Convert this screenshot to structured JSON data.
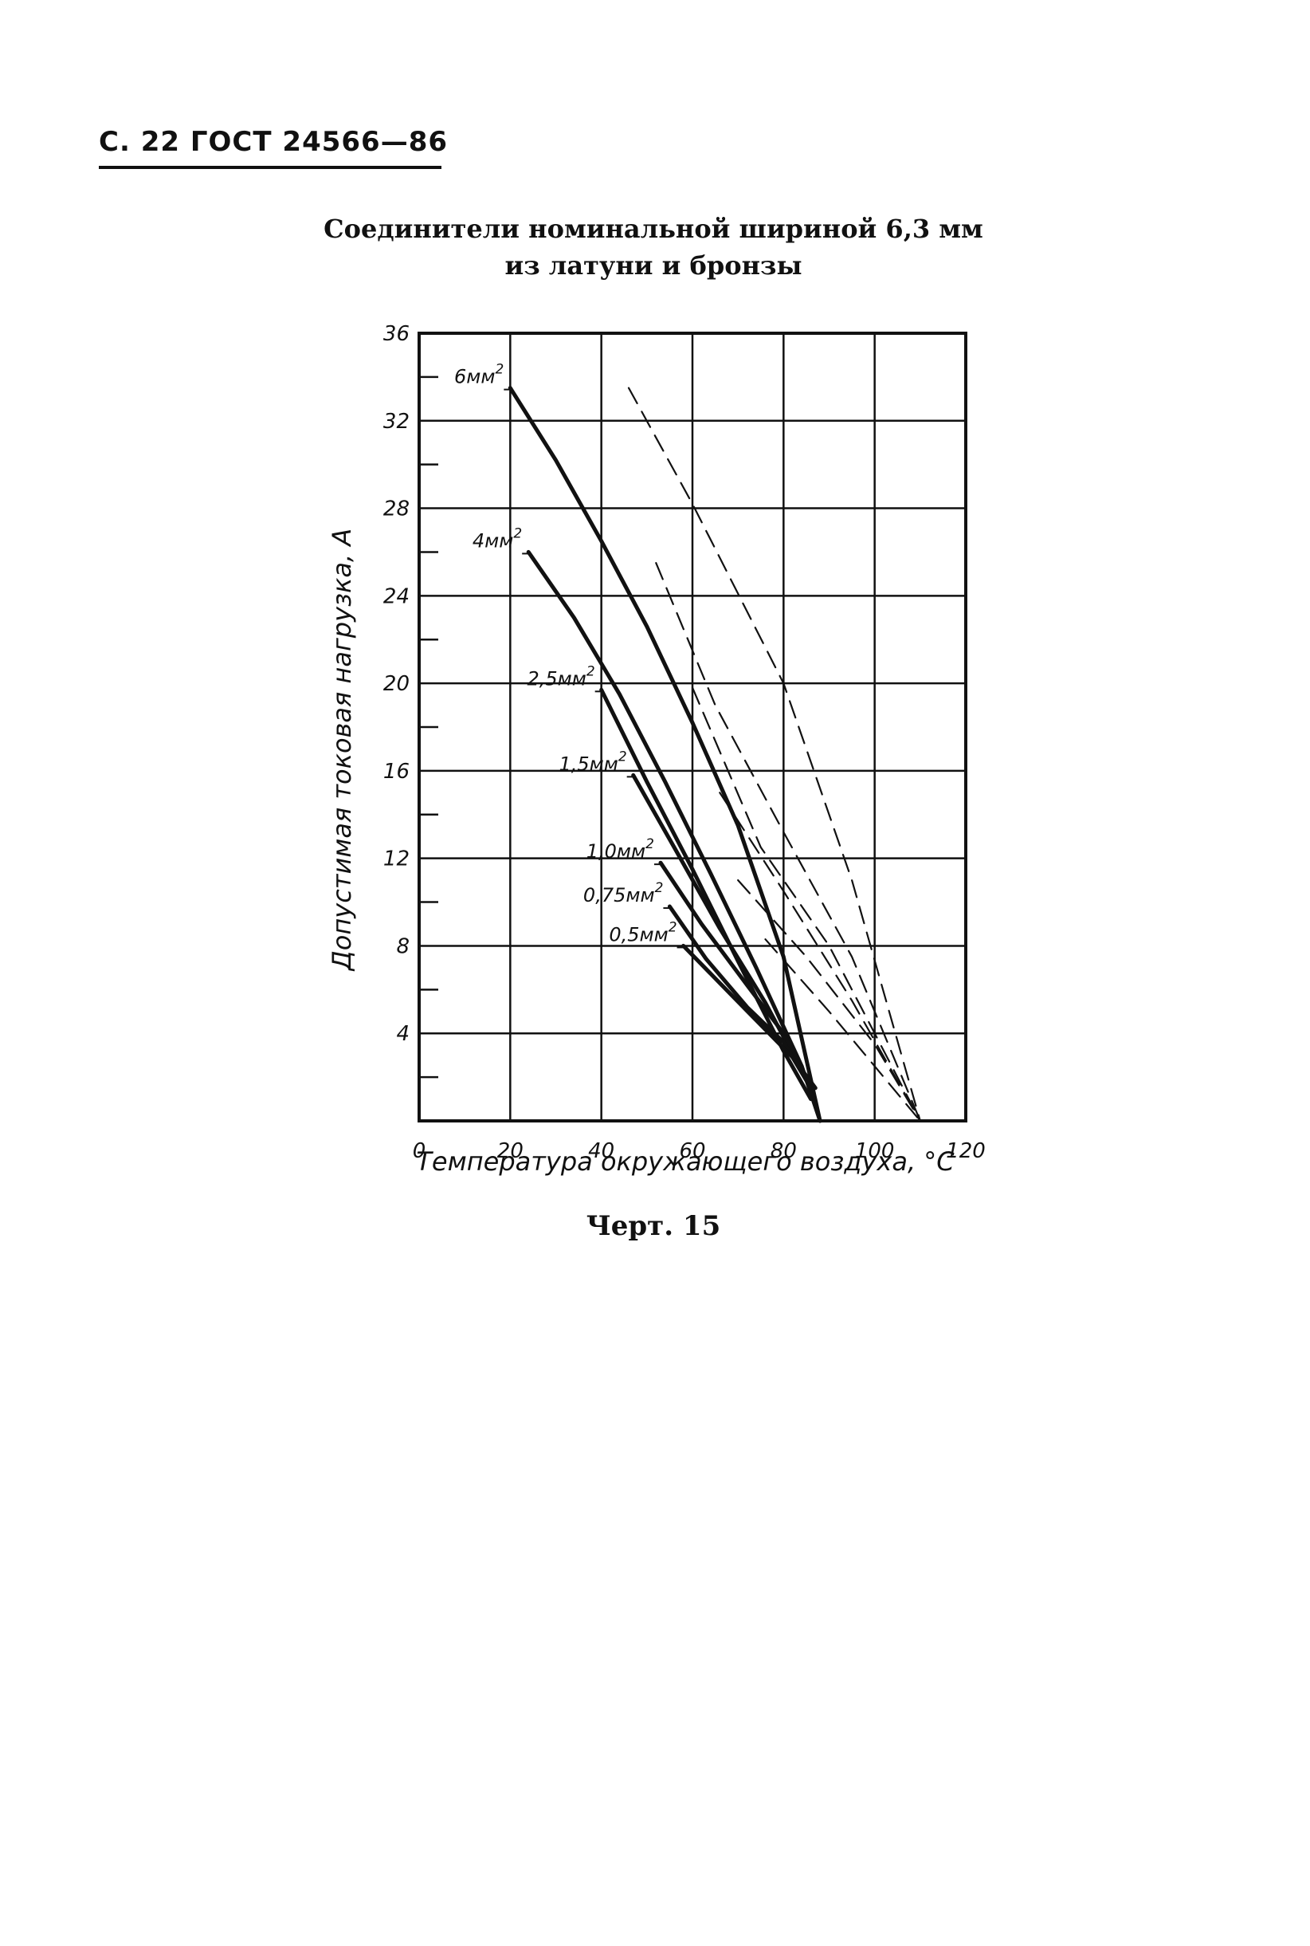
{
  "page": {
    "header": "С. 22 ГОСТ 24566—86",
    "title_lines": [
      "Соединители номинальной шириной 6,3 мм",
      "из латуни и бронзы"
    ],
    "caption": "Черт. 15"
  },
  "colors": {
    "ink": "#111111",
    "background": "#ffffff"
  },
  "chart_data": {
    "type": "line",
    "xlabel": "Температура окружающего воздуха, °С",
    "ylabel": "Допустимая токовая нагрузка, А",
    "xlim": [
      0,
      120
    ],
    "ylim": [
      0,
      36
    ],
    "xticks": [
      0,
      20,
      40,
      60,
      80,
      100,
      120
    ],
    "xtick_labels": [
      "0",
      "20",
      "40",
      "60",
      "80",
      "100",
      "120"
    ],
    "yticks": [
      4,
      8,
      12,
      16,
      20,
      24,
      28,
      32,
      36
    ],
    "ytick_labels": [
      "4",
      "8",
      "12",
      "16",
      "20",
      "24",
      "28",
      "32",
      "36"
    ],
    "grid": true,
    "series": [
      {
        "name": "6 мм²",
        "label": "6мм",
        "style": "solid",
        "x": [
          20,
          30,
          40,
          50,
          60,
          70,
          80,
          88
        ],
        "y": [
          33.5,
          30.2,
          26.5,
          22.6,
          18.2,
          13.5,
          7.5,
          0
        ]
      },
      {
        "name": "4 мм²",
        "label": "4мм",
        "style": "solid",
        "x": [
          24,
          34,
          44,
          54,
          64,
          74,
          84,
          88
        ],
        "y": [
          26,
          23,
          19.5,
          15.5,
          11.3,
          7,
          2.5,
          0
        ]
      },
      {
        "name": "2,5 мм²",
        "label": "2,5мм",
        "style": "solid",
        "x": [
          40,
          50,
          60,
          70,
          80,
          86
        ],
        "y": [
          19.7,
          15.5,
          11.5,
          7.3,
          3.2,
          1
        ]
      },
      {
        "name": "1,5 мм²",
        "label": "1,5мм",
        "style": "solid",
        "x": [
          47,
          56,
          66,
          76,
          86
        ],
        "y": [
          15.8,
          12.5,
          8.8,
          5.4,
          1.5
        ]
      },
      {
        "name": "1,0 мм²",
        "label": "1,0мм",
        "style": "solid",
        "x": [
          53,
          62,
          72,
          80,
          86
        ],
        "y": [
          11.8,
          9,
          6.2,
          4,
          1.5
        ]
      },
      {
        "name": "0,75 мм²",
        "label": "0,75мм",
        "style": "solid",
        "x": [
          55,
          63,
          72,
          80,
          86
        ],
        "y": [
          9.8,
          7.4,
          5.2,
          3.6,
          1.5
        ]
      },
      {
        "name": "0,5 мм²",
        "label": "0,5мм",
        "style": "solid",
        "x": [
          58,
          66,
          74,
          82,
          87
        ],
        "y": [
          8,
          6.3,
          4.6,
          2.9,
          1.5
        ]
      },
      {
        "name": "",
        "style": "dashed",
        "x": [
          46,
          60,
          80,
          95,
          110
        ],
        "y": [
          33.5,
          28.2,
          20,
          11,
          0
        ]
      },
      {
        "name": "",
        "style": "dashed",
        "x": [
          52,
          65,
          80,
          95,
          110
        ],
        "y": [
          25.5,
          19,
          13.2,
          7.5,
          0
        ]
      },
      {
        "name": "",
        "style": "dashed",
        "x": [
          60,
          75,
          90,
          110
        ],
        "y": [
          19.8,
          12.5,
          8,
          0
        ]
      },
      {
        "name": "",
        "style": "dashed",
        "x": [
          66,
          80,
          95,
          110
        ],
        "y": [
          15,
          10.5,
          5.5,
          0
        ]
      },
      {
        "name": "",
        "style": "dashed",
        "x": [
          70,
          85,
          100,
          110
        ],
        "y": [
          11,
          7.5,
          3.5,
          0
        ]
      },
      {
        "name": "",
        "style": "dashed",
        "x": [
          76,
          90,
          110
        ],
        "y": [
          8.3,
          5,
          0
        ]
      }
    ]
  }
}
